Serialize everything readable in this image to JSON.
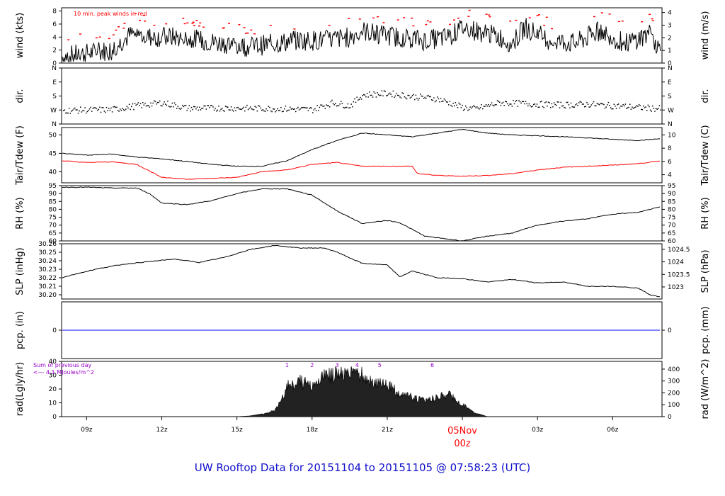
{
  "title": "UW Rooftop Data for 20151104  to  20151105 @ 07:58:23  (UTC)",
  "x_axis": {
    "tick_labels": [
      "09z",
      "12z",
      "15z",
      "18z",
      "21z",
      "05Nov",
      "03z",
      "06z"
    ],
    "day_label": "05Nov",
    "day_sublabel": "00z",
    "day_color": "#ff0000"
  },
  "colors": {
    "primary": "#000000",
    "dewpoint": "#ff0000",
    "peak": "#ff0000",
    "precip": "#0000ff",
    "annotation": "#9900cc",
    "title": "#1010cc"
  },
  "panels": [
    {
      "id": "wind",
      "ylabel_left": "wind (kts)",
      "ylabel_right": "wind (m/s)",
      "left_ticks": [
        "0",
        "2",
        "4",
        "6",
        "8"
      ],
      "right_ticks": [
        "0",
        "1",
        "2",
        "3",
        "4"
      ],
      "annotation": "10 min. peak winds in red"
    },
    {
      "id": "dir",
      "ylabel_left": "dir.",
      "ylabel_right": "dir.",
      "left_ticks": [
        "N",
        "E",
        "S",
        "W",
        "N"
      ],
      "right_ticks": [
        "N",
        "E",
        "S",
        "W",
        "N"
      ]
    },
    {
      "id": "temp",
      "ylabel_left": "Tair/Tdew (F)",
      "ylabel_right": "Tair/Tdew (C)",
      "left_ticks": [
        "40",
        "45",
        "50"
      ],
      "right_ticks": [
        "4",
        "6",
        "8",
        "10"
      ]
    },
    {
      "id": "rh",
      "ylabel_left": "RH (%)",
      "ylabel_right": "RH (%)",
      "left_ticks": [
        "60",
        "65",
        "70",
        "75",
        "80",
        "85",
        "90",
        "95"
      ],
      "right_ticks": [
        "60",
        "65",
        "70",
        "75",
        "80",
        "85",
        "90",
        "95"
      ]
    },
    {
      "id": "slp",
      "ylabel_left": "SLP (inHg)",
      "ylabel_right": "SLP (hPa)",
      "left_ticks": [
        "30.20",
        "30.21",
        "30.22",
        "30.23",
        "30.24",
        "30.25",
        "30.26"
      ],
      "right_ticks": [
        "1023",
        "1023.5",
        "1024",
        "1024.5"
      ]
    },
    {
      "id": "pcp",
      "ylabel_left": "pcp. (in)",
      "ylabel_right": "pcp. (mm)",
      "left_ticks": [
        "0"
      ],
      "right_ticks": [
        "0"
      ]
    },
    {
      "id": "rad",
      "ylabel_left": "rad(Lgly/hr)",
      "ylabel_right": "rad (W/m^2)",
      "left_ticks": [
        "0",
        "10",
        "20",
        "30",
        "40"
      ],
      "right_ticks": [
        "0",
        "100",
        "200",
        "300",
        "400"
      ],
      "annotation_line1": "Sum of previous day",
      "annotation_line2": "<--- 4.1 MJoules/m^2",
      "hour_marks": [
        "1",
        "2",
        "3",
        "4",
        "5",
        "6"
      ]
    }
  ],
  "chart_data": {
    "type": "line",
    "x_range_hours_utc": [
      8.0,
      31.97
    ],
    "series": [
      {
        "panel": "wind",
        "name": "wind (kts)",
        "ylim": [
          0,
          8.5
        ],
        "x": [
          8.0,
          9.0,
          10.0,
          10.8,
          11.5,
          12.5,
          13.5,
          14.5,
          15.5,
          16.5,
          17.5,
          18.5,
          19.5,
          20.0,
          20.5,
          21.5,
          22.5,
          23.5,
          24.0,
          24.5,
          25.5,
          26.0,
          26.5,
          27.5,
          28.5,
          29.5,
          30.5,
          31.5,
          31.97
        ],
        "y": [
          1,
          1.5,
          2,
          4.5,
          4,
          4,
          3.5,
          3,
          2.5,
          3,
          3.5,
          3.5,
          4,
          5,
          4.5,
          4,
          3.5,
          4,
          5.5,
          5,
          4,
          3,
          5.5,
          3.5,
          3,
          5,
          3,
          4.5,
          1.5
        ]
      },
      {
        "panel": "dir",
        "name": "wind direction",
        "ylim": [
          0,
          360
        ],
        "x": [
          8.0,
          10.0,
          11.0,
          12.0,
          13.0,
          15.0,
          17.0,
          18.0,
          18.8,
          19.5,
          20.0,
          21.0,
          22.0,
          23.0,
          24.0,
          24.5,
          25.5,
          27.0,
          28.0,
          29.0,
          30.0,
          31.0,
          31.97
        ],
        "y": [
          90,
          95,
          120,
          140,
          105,
          105,
          100,
          95,
          140,
          120,
          190,
          200,
          180,
          165,
          110,
          100,
          140,
          130,
          125,
          130,
          120,
          110,
          100
        ]
      },
      {
        "panel": "temp",
        "name": "Tair (F)",
        "ylim": [
          37,
          52
        ],
        "x": [
          8.0,
          9.0,
          10.0,
          11.0,
          12.0,
          13.0,
          14.0,
          15.0,
          16.0,
          17.0,
          18.0,
          19.0,
          20.0,
          21.0,
          22.0,
          23.0,
          24.0,
          25.0,
          26.0,
          27.0,
          28.0,
          29.0,
          30.0,
          31.0,
          31.97
        ],
        "y": [
          45,
          44.5,
          44.8,
          44,
          43.5,
          42.8,
          42,
          41.5,
          41.5,
          43,
          46,
          48.5,
          50.5,
          50,
          49.5,
          50.5,
          51.5,
          50.5,
          50,
          49.8,
          49.5,
          49.2,
          48.8,
          48.5,
          49
        ]
      },
      {
        "panel": "temp",
        "name": "Tdew (F)",
        "ylim": [
          37,
          52
        ],
        "x": [
          8.0,
          9.0,
          10.0,
          11.0,
          12.0,
          13.0,
          14.0,
          15.0,
          16.0,
          17.0,
          18.0,
          19.0,
          20.0,
          21.0,
          22.0,
          22.2,
          23.0,
          24.0,
          25.0,
          26.0,
          27.0,
          28.0,
          29.0,
          30.0,
          31.0,
          31.97
        ],
        "y": [
          43,
          42.5,
          42.7,
          42,
          38.5,
          38,
          38.2,
          38.5,
          40,
          40.5,
          42,
          42.5,
          41.5,
          41.5,
          41.5,
          39.5,
          39,
          38.8,
          39,
          39.5,
          40.5,
          41.2,
          41.5,
          41.8,
          42.2,
          43
        ]
      },
      {
        "panel": "rh",
        "name": "RH (%)",
        "ylim": [
          60,
          95
        ],
        "x": [
          8.0,
          9.0,
          10.0,
          11.0,
          11.5,
          12.0,
          13.0,
          14.0,
          15.0,
          16.0,
          17.0,
          18.0,
          19.0,
          20.0,
          21.0,
          21.5,
          22.5,
          23.5,
          24.0,
          25.0,
          26.0,
          27.0,
          28.0,
          29.0,
          30.0,
          31.0,
          31.97
        ],
        "y": [
          94,
          94,
          93.5,
          93.5,
          90,
          84,
          83,
          85.5,
          90,
          93,
          93,
          89,
          79,
          71,
          73,
          71.5,
          63,
          61,
          60,
          63,
          65,
          70,
          72.5,
          74,
          77,
          78,
          82
        ]
      },
      {
        "panel": "slp",
        "name": "SLP (inHg)",
        "ylim": [
          30.195,
          30.26
        ],
        "x": [
          8.0,
          8.5,
          9.5,
          10.5,
          11.5,
          12.5,
          13.5,
          14.5,
          15.5,
          16.5,
          17.5,
          18.5,
          19.0,
          20.0,
          21.0,
          21.5,
          22.0,
          23.0,
          24.0,
          25.0,
          26.0,
          27.0,
          28.0,
          29.0,
          30.0,
          31.0,
          31.5,
          31.97
        ],
        "y": [
          30.22,
          30.224,
          30.231,
          30.236,
          30.239,
          30.242,
          30.238,
          30.244,
          30.253,
          30.258,
          30.255,
          30.255,
          30.25,
          30.237,
          30.235,
          30.221,
          30.228,
          30.22,
          30.219,
          30.215,
          30.218,
          30.214,
          30.215,
          30.21,
          30.21,
          30.208,
          30.2,
          30.197
        ]
      },
      {
        "panel": "pcp",
        "name": "pcp. (in)",
        "ylim": [
          -1,
          1
        ],
        "x": [
          8.0,
          31.97
        ],
        "y": [
          0,
          0
        ]
      },
      {
        "panel": "rad",
        "name": "rad (Lgly/hr)",
        "ylim": [
          0,
          40
        ],
        "x": [
          8.0,
          15.0,
          15.5,
          16.0,
          16.5,
          16.8,
          17.0,
          17.5,
          18.0,
          18.3,
          18.5,
          19.0,
          19.5,
          19.8,
          20.0,
          20.5,
          21.0,
          21.5,
          22.0,
          22.5,
          23.0,
          23.5,
          24.0,
          24.5,
          25.0,
          31.97
        ],
        "y": [
          0,
          0,
          0.5,
          2,
          5,
          15,
          27,
          31,
          26,
          32,
          36,
          37,
          37,
          38,
          36,
          30,
          28,
          20,
          17,
          14,
          17,
          19,
          11,
          3,
          0,
          0
        ]
      }
    ]
  }
}
